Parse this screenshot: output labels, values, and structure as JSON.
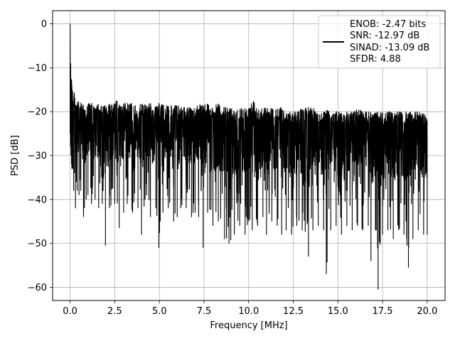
{
  "chart_data": {
    "type": "line",
    "title": "",
    "xlabel": "Frequency [MHz]",
    "ylabel": "PSD [dB]",
    "xlim": [
      -0.98,
      21.0
    ],
    "ylim": [
      -63.0,
      3.0
    ],
    "x_ticks": [
      0.0,
      2.5,
      5.0,
      7.5,
      10.0,
      12.5,
      15.0,
      17.5,
      20.0
    ],
    "x_tick_labels": [
      "0.0",
      "2.5",
      "5.0",
      "7.5",
      "10.0",
      "12.5",
      "15.0",
      "17.5",
      "20.0"
    ],
    "y_ticks": [
      0,
      -10,
      -20,
      -30,
      -40,
      -50,
      -60
    ],
    "y_tick_labels": [
      "0",
      "−10",
      "−20",
      "−30",
      "−40",
      "−50",
      "−60"
    ],
    "grid": true,
    "legend_position": "top-right",
    "legend": [
      "ENOB: -2.47 bits",
      "SNR: -12.97 dB",
      "SINAD: -13.09 dB",
      "SFDR: 4.88"
    ],
    "line_color": "#000000",
    "grid_color": "#b0b0b0",
    "series": [
      {
        "x": [
          0.0,
          0.02,
          0.05,
          0.08,
          0.1,
          0.12,
          0.15,
          0.2,
          0.25,
          0.3,
          0.35,
          0.4,
          0.5,
          0.6,
          0.75,
          0.9,
          1.0,
          1.2,
          1.4,
          1.6,
          1.8,
          1.98,
          2.2,
          2.5,
          2.75,
          3.0,
          3.2,
          3.5,
          3.8,
          4.0,
          4.2,
          4.5,
          4.8,
          4.97,
          5.2,
          5.5,
          5.8,
          6.0,
          6.2,
          6.5,
          6.8,
          7.0,
          7.2,
          7.45,
          7.7,
          8.0,
          8.3,
          8.65,
          8.9,
          9.2,
          9.5,
          9.8,
          10.0,
          10.2,
          10.5,
          10.8,
          11.0,
          11.3,
          11.6,
          11.85,
          12.1,
          12.4,
          12.7,
          13.0,
          13.35,
          13.6,
          13.9,
          14.2,
          14.35,
          14.6,
          14.9,
          15.2,
          15.5,
          15.8,
          16.1,
          16.4,
          16.7,
          16.85,
          17.1,
          17.25,
          17.5,
          17.8,
          18.1,
          18.4,
          18.7,
          18.95,
          19.2,
          19.5,
          19.8,
          20.0
        ],
        "upper": [
          0.0,
          -5,
          -9,
          -11,
          -13,
          -14,
          -15,
          -15,
          -16,
          -17,
          -17,
          -17,
          -18,
          -18,
          -18,
          -19,
          -18,
          -18,
          -19,
          -18,
          -19,
          -18,
          -18,
          -17,
          -18,
          -18,
          -18,
          -18,
          -19,
          -18,
          -18,
          -18,
          -19,
          -18,
          -18,
          -18,
          -19,
          -18,
          -19,
          -19,
          -19,
          -19,
          -18,
          -18,
          -18,
          -19,
          -18,
          -19,
          -19,
          -19,
          -19,
          -19,
          -19,
          -16,
          -19,
          -19,
          -19,
          -19,
          -19,
          -19,
          -20,
          -20,
          -20,
          -19,
          -19,
          -19,
          -20,
          -20,
          -19,
          -20,
          -20,
          -20,
          -20,
          -20,
          -19,
          -20,
          -20,
          -20,
          -20,
          -20,
          -20,
          -20,
          -20,
          -20,
          -20,
          -20,
          -20,
          -20,
          -20,
          -21
        ],
        "lower": [
          -25,
          -28,
          -30,
          -32,
          -33,
          -33,
          -33,
          -38,
          -34,
          -42,
          -36,
          -38,
          -39,
          -38,
          -44,
          -40,
          -39,
          -41,
          -40,
          -42,
          -41,
          -50.5,
          -42,
          -41,
          -46.5,
          -43,
          -41,
          -43,
          -42,
          -48,
          -40,
          -44,
          -42,
          -51,
          -43,
          -42,
          -45,
          -44,
          -42,
          -42,
          -44,
          -43,
          -44,
          -51,
          -43,
          -46,
          -45,
          -49,
          -50,
          -48,
          -46,
          -48,
          -45,
          -47,
          -46,
          -44,
          -48,
          -45,
          -46,
          -48,
          -47,
          -48,
          -46,
          -47,
          -53,
          -47,
          -46,
          -47,
          -57,
          -47,
          -46,
          -48,
          -46,
          -47,
          -46,
          -47,
          -46,
          -54,
          -47,
          -60.5,
          -48,
          -47,
          -49,
          -47,
          -48,
          -55.5,
          -49,
          -47,
          -48,
          -48
        ]
      }
    ]
  }
}
